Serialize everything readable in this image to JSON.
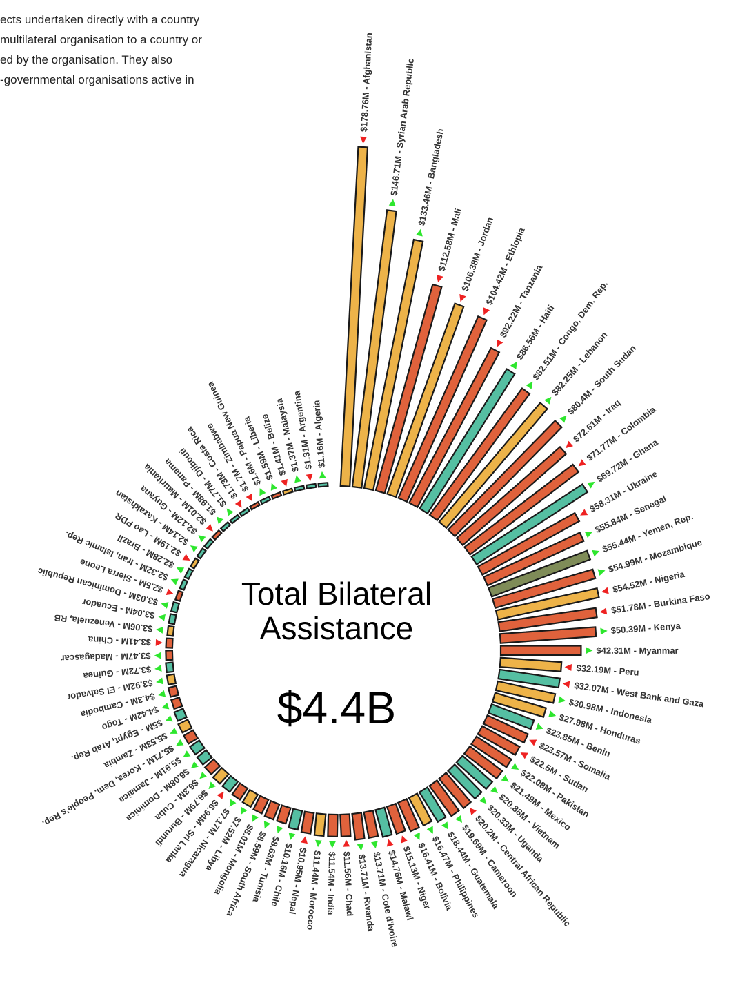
{
  "intro_lines": [
    "ects undertaken directly with a country",
    "multilateral organisation to a country or",
    "ed by the organisation. They also",
    "-governmental organisations active in"
  ],
  "center": {
    "title_line1": "Total Bilateral",
    "title_line2": "Assistance",
    "total": "$4.4B"
  },
  "colors": {
    "gold": "#EDB349",
    "orange": "#E0623C",
    "teal": "#55BFA2",
    "olive": "#7F8C58",
    "arrow_up": "#2EE62E",
    "arrow_down": "#EE2222"
  },
  "chart_data": {
    "type": "bar",
    "layout": "radial",
    "unit": "USD millions",
    "bars": [
      {
        "label": "$178.76M - Afghanistan",
        "country": "Afghanistan",
        "value": 178.76,
        "color": "gold",
        "trend": "down"
      },
      {
        "label": "$146.71M - Syrian Arab Republic",
        "country": "Syrian Arab Republic",
        "value": 146.71,
        "color": "gold",
        "trend": "up"
      },
      {
        "label": "$133.46M - Bangladesh",
        "country": "Bangladesh",
        "value": 133.46,
        "color": "gold",
        "trend": "up"
      },
      {
        "label": "$112.58M - Mali",
        "country": "Mali",
        "value": 112.58,
        "color": "orange",
        "trend": "down"
      },
      {
        "label": "$106.38M - Jordan",
        "country": "Jordan",
        "value": 106.38,
        "color": "gold",
        "trend": "down"
      },
      {
        "label": "$104.42M - Ethiopia",
        "country": "Ethiopia",
        "value": 104.42,
        "color": "orange",
        "trend": "down"
      },
      {
        "label": "$92.22M - Tanzania",
        "country": "Tanzania",
        "value": 92.22,
        "color": "orange",
        "trend": "down"
      },
      {
        "label": "$86.56M - Haiti",
        "country": "Haiti",
        "value": 86.56,
        "color": "teal",
        "trend": "up"
      },
      {
        "label": "$82.51M - Congo, Dem. Rep.",
        "country": "Congo, Dem. Rep.",
        "value": 82.51,
        "color": "orange",
        "trend": "up"
      },
      {
        "label": "$82.25M - Lebanon",
        "country": "Lebanon",
        "value": 82.25,
        "color": "gold",
        "trend": "up"
      },
      {
        "label": "$80.4M - South Sudan",
        "country": "South Sudan",
        "value": 80.4,
        "color": "orange",
        "trend": "up"
      },
      {
        "label": "$72.61M - Iraq",
        "country": "Iraq",
        "value": 72.61,
        "color": "orange",
        "trend": "down"
      },
      {
        "label": "$71.77M - Colombia",
        "country": "Colombia",
        "value": 71.77,
        "color": "orange",
        "trend": "down"
      },
      {
        "label": "$69.72M - Ghana",
        "country": "Ghana",
        "value": 69.72,
        "color": "teal",
        "trend": "up"
      },
      {
        "label": "$58.31M - Ukraine",
        "country": "Ukraine",
        "value": 58.31,
        "color": "orange",
        "trend": "down"
      },
      {
        "label": "$55.84M - Senegal",
        "country": "Senegal",
        "value": 55.84,
        "color": "orange",
        "trend": "up"
      },
      {
        "label": "$55.44M - Yemen, Rep.",
        "country": "Yemen, Rep.",
        "value": 55.44,
        "color": "olive",
        "trend": "up"
      },
      {
        "label": "$54.99M - Mozambique",
        "country": "Mozambique",
        "value": 54.99,
        "color": "orange",
        "trend": "up"
      },
      {
        "label": "$54.52M - Nigeria",
        "country": "Nigeria",
        "value": 54.52,
        "color": "gold",
        "trend": "down"
      },
      {
        "label": "$51.78M - Burkina Faso",
        "country": "Burkina Faso",
        "value": 51.78,
        "color": "orange",
        "trend": "down"
      },
      {
        "label": "$50.39M - Kenya",
        "country": "Kenya",
        "value": 50.39,
        "color": "orange",
        "trend": "up"
      },
      {
        "label": "$42.31M - Myanmar",
        "country": "Myanmar",
        "value": 42.31,
        "color": "orange",
        "trend": "up"
      },
      {
        "label": "$32.19M - Peru",
        "country": "Peru",
        "value": 32.19,
        "color": "gold",
        "trend": "down"
      },
      {
        "label": "$32.07M - West Bank and Gaza",
        "country": "West Bank and Gaza",
        "value": 32.07,
        "color": "teal",
        "trend": "down"
      },
      {
        "label": "$30.98M - Indonesia",
        "country": "Indonesia",
        "value": 30.98,
        "color": "gold",
        "trend": "up"
      },
      {
        "label": "$27.98M - Honduras",
        "country": "Honduras",
        "value": 27.98,
        "color": "gold",
        "trend": "up"
      },
      {
        "label": "$23.85M - Benin",
        "country": "Benin",
        "value": 23.85,
        "color": "teal",
        "trend": "up"
      },
      {
        "label": "$23.57M - Somalia",
        "country": "Somalia",
        "value": 23.57,
        "color": "orange",
        "trend": "down"
      },
      {
        "label": "$22.5M - Sudan",
        "country": "Sudan",
        "value": 22.5,
        "color": "orange",
        "trend": "down"
      },
      {
        "label": "$22.08M - Pakistan",
        "country": "Pakistan",
        "value": 22.08,
        "color": "orange",
        "trend": "up"
      },
      {
        "label": "$21.49M - Mexico",
        "country": "Mexico",
        "value": 21.49,
        "color": "orange",
        "trend": "up"
      },
      {
        "label": "$20.88M - Vietnam",
        "country": "Vietnam",
        "value": 20.88,
        "color": "teal",
        "trend": "up"
      },
      {
        "label": "$20.33M - Uganda",
        "country": "Uganda",
        "value": 20.33,
        "color": "teal",
        "trend": "up"
      },
      {
        "label": "$20.2M - Central African Republic",
        "country": "Central African Republic",
        "value": 20.2,
        "color": "orange",
        "trend": "down"
      },
      {
        "label": "$19.69M - Cameroon",
        "country": "Cameroon",
        "value": 19.69,
        "color": "orange",
        "trend": "up"
      },
      {
        "label": "$18.44M - Guatemala",
        "country": "Guatemala",
        "value": 18.44,
        "color": "teal",
        "trend": "up"
      },
      {
        "label": "$16.47M - Philippines",
        "country": "Philippines",
        "value": 16.47,
        "color": "gold",
        "trend": "up"
      },
      {
        "label": "$16.41M - Bolivia",
        "country": "Bolivia",
        "value": 16.41,
        "color": "orange",
        "trend": "up"
      },
      {
        "label": "$15.13M - Niger",
        "country": "Niger",
        "value": 15.13,
        "color": "orange",
        "trend": "down"
      },
      {
        "label": "$14.76M - Malawi",
        "country": "Malawi",
        "value": 14.76,
        "color": "teal",
        "trend": "down"
      },
      {
        "label": "$13.71M - Cote d'Ivoire",
        "country": "Cote d'Ivoire",
        "value": 13.71,
        "color": "orange",
        "trend": "up"
      },
      {
        "label": "$13.71M - Rwanda",
        "country": "Rwanda",
        "value": 13.71,
        "color": "orange",
        "trend": "up"
      },
      {
        "label": "$11.56M - Chad",
        "country": "Chad",
        "value": 11.56,
        "color": "orange",
        "trend": "down"
      },
      {
        "label": "$11.54M - India",
        "country": "India",
        "value": 11.54,
        "color": "orange",
        "trend": "up"
      },
      {
        "label": "$11.44M - Morocco",
        "country": "Morocco",
        "value": 11.44,
        "color": "gold",
        "trend": "up"
      },
      {
        "label": "$10.95M - Nepal",
        "country": "Nepal",
        "value": 10.95,
        "color": "orange",
        "trend": "down"
      },
      {
        "label": "$10.16M - Chile",
        "country": "Chile",
        "value": 10.16,
        "color": "teal",
        "trend": "up"
      },
      {
        "label": "$8.63M - Tunisia",
        "country": "Tunisia",
        "value": 8.63,
        "color": "orange",
        "trend": "up"
      },
      {
        "label": "$8.59M - South Africa",
        "country": "South Africa",
        "value": 8.59,
        "color": "orange",
        "trend": "up"
      },
      {
        "label": "$8.01M - Mongolia",
        "country": "Mongolia",
        "value": 8.01,
        "color": "orange",
        "trend": "up"
      },
      {
        "label": "$7.52M - Libya",
        "country": "Libya",
        "value": 7.52,
        "color": "gold",
        "trend": "up"
      },
      {
        "label": "$7.17M - Nicaragua",
        "country": "Nicaragua",
        "value": 7.17,
        "color": "orange",
        "trend": "up"
      },
      {
        "label": "$6.94M - Sri Lanka",
        "country": "Sri Lanka",
        "value": 6.94,
        "color": "teal",
        "trend": "down"
      },
      {
        "label": "$6.79M - Burundi",
        "country": "Burundi",
        "value": 6.79,
        "color": "gold",
        "trend": "up"
      },
      {
        "label": "$6.3M - Cuba",
        "country": "Cuba",
        "value": 6.3,
        "color": "orange",
        "trend": "up"
      },
      {
        "label": "$6.08M - Dominica",
        "country": "Dominica",
        "value": 6.08,
        "color": "teal",
        "trend": "up"
      },
      {
        "label": "$5.91M - Jamaica",
        "country": "Jamaica",
        "value": 5.91,
        "color": "teal",
        "trend": "up"
      },
      {
        "label": "$5.71M - Korea, Dem. People's Rep.",
        "country": "Korea, Dem. People's Rep.",
        "value": 5.71,
        "color": "orange",
        "trend": "up"
      },
      {
        "label": "$5.53M - Zambia",
        "country": "Zambia",
        "value": 5.53,
        "color": "gold",
        "trend": "up"
      },
      {
        "label": "$5M - Egypt, Arab Rep.",
        "country": "Egypt, Arab Rep.",
        "value": 5.0,
        "color": "teal",
        "trend": "up"
      },
      {
        "label": "$4.42M - Togo",
        "country": "Togo",
        "value": 4.42,
        "color": "orange",
        "trend": "up"
      },
      {
        "label": "$4.3M - Cambodia",
        "country": "Cambodia",
        "value": 4.3,
        "color": "orange",
        "trend": "up"
      },
      {
        "label": "$3.92M - El Salvador",
        "country": "El Salvador",
        "value": 3.92,
        "color": "gold",
        "trend": "up"
      },
      {
        "label": "$3.72M - Guinea",
        "country": "Guinea",
        "value": 3.72,
        "color": "teal",
        "trend": "up"
      },
      {
        "label": "$3.47M - Madagascar",
        "country": "Madagascar",
        "value": 3.47,
        "color": "orange",
        "trend": "up"
      },
      {
        "label": "$3.41M - China",
        "country": "China",
        "value": 3.41,
        "color": "orange",
        "trend": "down"
      },
      {
        "label": "$3.06M - Venezuela, RB",
        "country": "Venezuela, RB",
        "value": 3.06,
        "color": "gold",
        "trend": "up"
      },
      {
        "label": "$3.04M - Ecuador",
        "country": "Ecuador",
        "value": 3.04,
        "color": "teal",
        "trend": "up"
      },
      {
        "label": "$3.03M - Dominican Republic",
        "country": "Dominican Republic",
        "value": 3.03,
        "color": "teal",
        "trend": "up"
      },
      {
        "label": "$2.5M - Sierra Leone",
        "country": "Sierra Leone",
        "value": 2.5,
        "color": "orange",
        "trend": "down"
      },
      {
        "label": "$2.32M - Iran, Islamic Rep.",
        "country": "Iran, Islamic Rep.",
        "value": 2.32,
        "color": "teal",
        "trend": "up"
      },
      {
        "label": "$2.28M - Brazil",
        "country": "Brazil",
        "value": 2.28,
        "color": "teal",
        "trend": "up"
      },
      {
        "label": "$2.19M - Lao PDR",
        "country": "Lao PDR",
        "value": 2.19,
        "color": "gold",
        "trend": "down"
      },
      {
        "label": "$2.14M - Kazakhstan",
        "country": "Kazakhstan",
        "value": 2.14,
        "color": "teal",
        "trend": "up"
      },
      {
        "label": "$2.12M - Guyana",
        "country": "Guyana",
        "value": 2.12,
        "color": "teal",
        "trend": "up"
      },
      {
        "label": "$2.01M - Mauritania",
        "country": "Mauritania",
        "value": 2.01,
        "color": "orange",
        "trend": "down"
      },
      {
        "label": "$1.98M - Panama",
        "country": "Panama",
        "value": 1.98,
        "color": "teal",
        "trend": "up"
      },
      {
        "label": "$1.77M - Djibouti",
        "country": "Djibouti",
        "value": 1.77,
        "color": "teal",
        "trend": "up"
      },
      {
        "label": "$1.73M - Costa Rica",
        "country": "Costa Rica",
        "value": 1.73,
        "color": "teal",
        "trend": "down"
      },
      {
        "label": "$1.7M - Zimbabwe",
        "country": "Zimbabwe",
        "value": 1.7,
        "color": "orange",
        "trend": "down"
      },
      {
        "label": "$1.6M - Papua New Guinea",
        "country": "Papua New Guinea",
        "value": 1.6,
        "color": "teal",
        "trend": "up"
      },
      {
        "label": "$1.59M - Liberia",
        "country": "Liberia",
        "value": 1.59,
        "color": "orange",
        "trend": "up"
      },
      {
        "label": "$1.41M - Belize",
        "country": "Belize",
        "value": 1.41,
        "color": "gold",
        "trend": "down"
      },
      {
        "label": "$1.37M - Malaysia",
        "country": "Malaysia",
        "value": 1.37,
        "color": "teal",
        "trend": "up"
      },
      {
        "label": "$1.31M - Argentina",
        "country": "Argentina",
        "value": 1.31,
        "color": "teal",
        "trend": "down"
      },
      {
        "label": "$1.16M - Algeria",
        "country": "Algeria",
        "value": 1.16,
        "color": "teal",
        "trend": "up"
      }
    ]
  }
}
